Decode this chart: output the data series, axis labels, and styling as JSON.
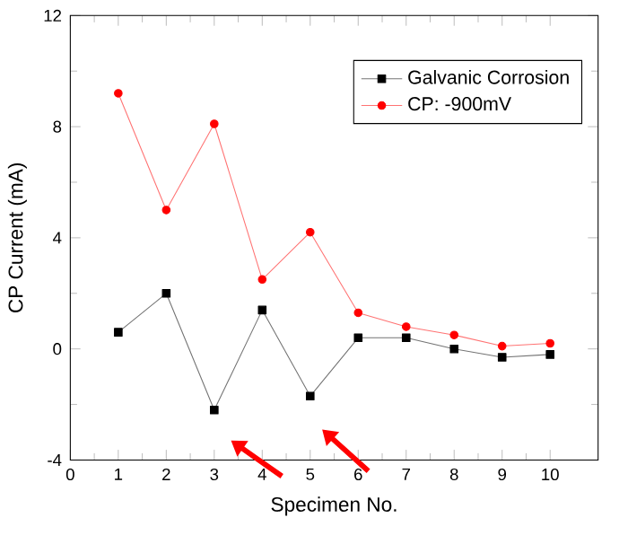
{
  "chart_data": {
    "type": "line",
    "xlabel": "Specimen No.",
    "ylabel": "CP Current (mA)",
    "x": [
      1,
      2,
      3,
      4,
      5,
      6,
      7,
      8,
      9,
      10
    ],
    "series": [
      {
        "name": "Galvanic Corrosion",
        "color": "#000000",
        "marker": "square",
        "values": [
          0.6,
          2.0,
          -2.2,
          1.4,
          -1.7,
          0.4,
          0.4,
          0.0,
          -0.3,
          -0.2
        ]
      },
      {
        "name": "CP: -900mV",
        "color": "#ff0000",
        "marker": "circle",
        "values": [
          9.2,
          5.0,
          8.1,
          2.5,
          4.2,
          1.3,
          0.8,
          0.5,
          0.1,
          0.2
        ]
      }
    ],
    "xlim": [
      0,
      11
    ],
    "xticks": [
      0,
      1,
      2,
      3,
      4,
      5,
      6,
      7,
      8,
      9,
      10
    ],
    "ylim": [
      -4,
      12
    ],
    "yticks": [
      -4,
      0,
      4,
      8,
      12
    ],
    "grid": false,
    "legend": "top right"
  }
}
